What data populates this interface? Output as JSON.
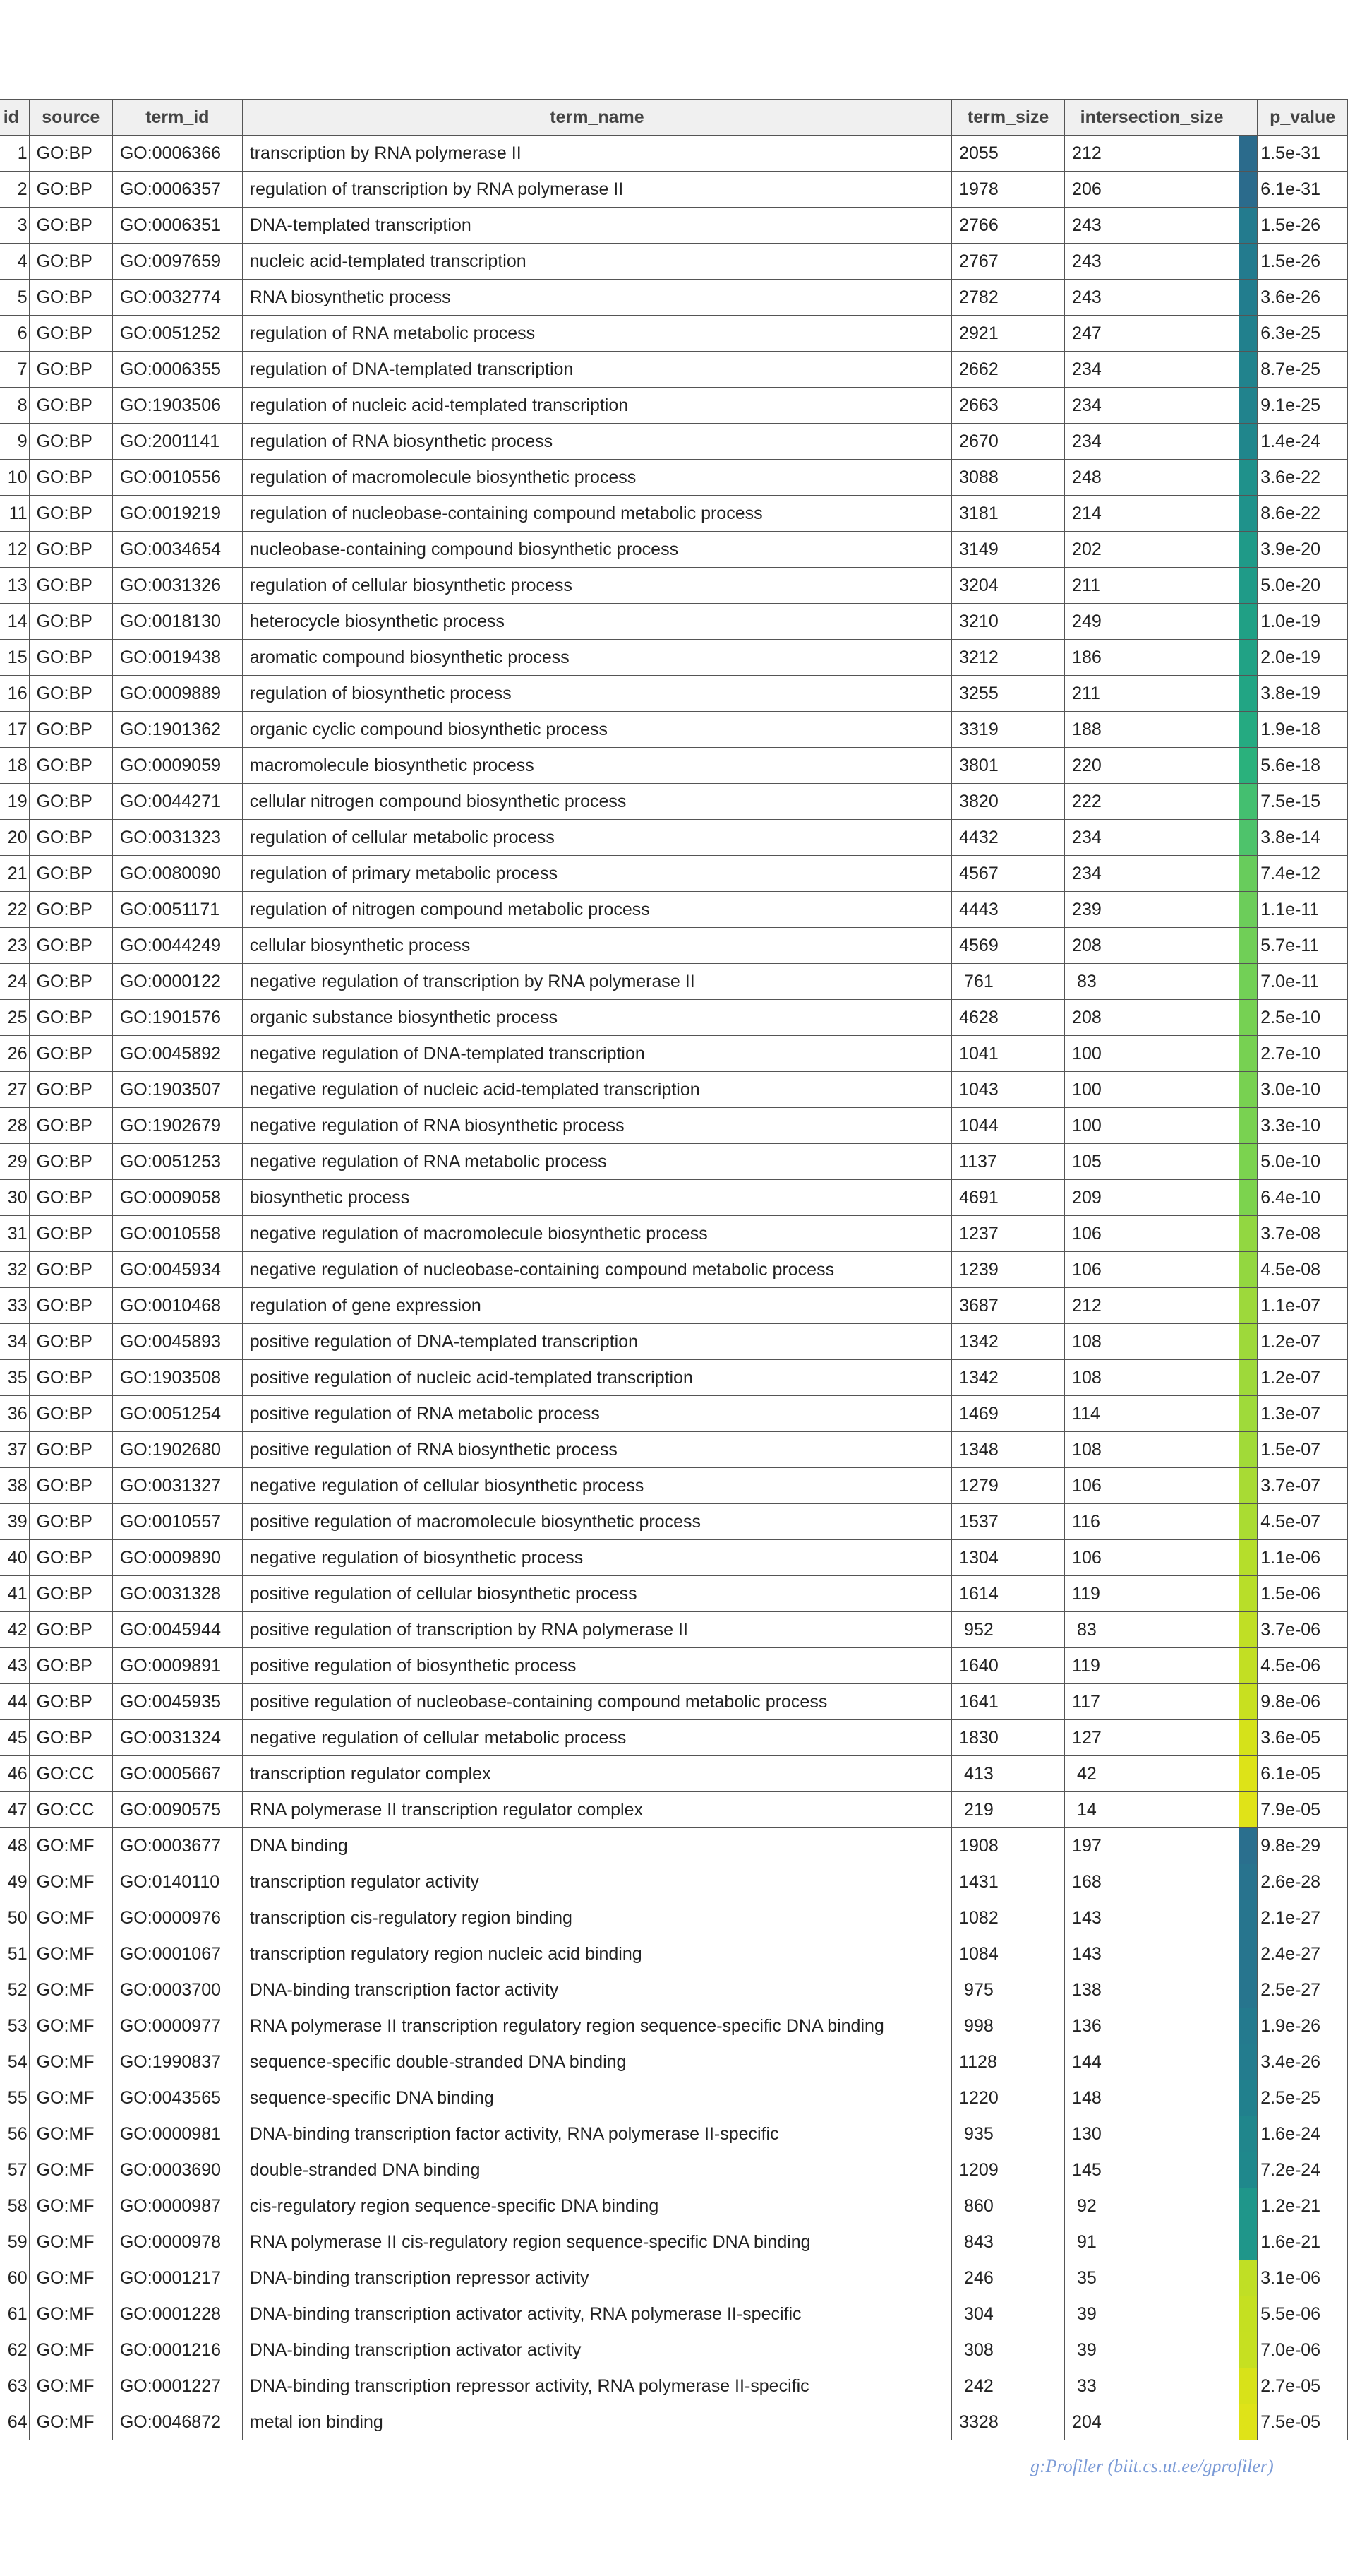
{
  "table": {
    "headers": {
      "id": "id",
      "source": "source",
      "term_id": "term_id",
      "term_name": "term_name",
      "term_size": "term_size",
      "intersection_size": "intersection_size",
      "color": "",
      "p_value": "p_value"
    },
    "rows": [
      {
        "id": "1",
        "source": "GO:BP",
        "term_id": "GO:0006366",
        "term_name": "transcription by RNA polymerase II",
        "term_size": "2055",
        "intersection_size": "212",
        "color": "#2b6b8c",
        "p_value": "1.5e-31"
      },
      {
        "id": "2",
        "source": "GO:BP",
        "term_id": "GO:0006357",
        "term_name": "regulation of transcription by RNA polymerase II",
        "term_size": "1978",
        "intersection_size": "206",
        "color": "#2b6b8c",
        "p_value": "6.1e-31"
      },
      {
        "id": "3",
        "source": "GO:BP",
        "term_id": "GO:0006351",
        "term_name": "DNA-templated transcription",
        "term_size": "2766",
        "intersection_size": "243",
        "color": "#237b8e",
        "p_value": "1.5e-26"
      },
      {
        "id": "4",
        "source": "GO:BP",
        "term_id": "GO:0097659",
        "term_name": "nucleic acid-templated transcription",
        "term_size": "2767",
        "intersection_size": "243",
        "color": "#237b8e",
        "p_value": "1.5e-26"
      },
      {
        "id": "5",
        "source": "GO:BP",
        "term_id": "GO:0032774",
        "term_name": "RNA biosynthetic process",
        "term_size": "2782",
        "intersection_size": "243",
        "color": "#227d8e",
        "p_value": "3.6e-26"
      },
      {
        "id": "6",
        "source": "GO:BP",
        "term_id": "GO:0051252",
        "term_name": "regulation of RNA metabolic process",
        "term_size": "2921",
        "intersection_size": "247",
        "color": "#21808d",
        "p_value": "6.3e-25"
      },
      {
        "id": "7",
        "source": "GO:BP",
        "term_id": "GO:0006355",
        "term_name": "regulation of DNA-templated transcription",
        "term_size": "2662",
        "intersection_size": "234",
        "color": "#21838d",
        "p_value": "8.7e-25"
      },
      {
        "id": "8",
        "source": "GO:BP",
        "term_id": "GO:1903506",
        "term_name": "regulation of nucleic acid-templated transcription",
        "term_size": "2663",
        "intersection_size": "234",
        "color": "#21838d",
        "p_value": "9.1e-25"
      },
      {
        "id": "9",
        "source": "GO:BP",
        "term_id": "GO:2001141",
        "term_name": "regulation of RNA biosynthetic process",
        "term_size": "2670",
        "intersection_size": "234",
        "color": "#20868c",
        "p_value": "1.4e-24"
      },
      {
        "id": "10",
        "source": "GO:BP",
        "term_id": "GO:0010556",
        "term_name": "regulation of macromolecule biosynthetic process",
        "term_size": "3088",
        "intersection_size": "248",
        "color": "#1f918b",
        "p_value": "3.6e-22"
      },
      {
        "id": "11",
        "source": "GO:BP",
        "term_id": "GO:0019219",
        "term_name": "regulation of nucleobase-containing compound metabolic process",
        "term_size": "3181",
        "intersection_size": "214",
        "color": "#1f928b",
        "p_value": "8.6e-22"
      },
      {
        "id": "12",
        "source": "GO:BP",
        "term_id": "GO:0034654",
        "term_name": "nucleobase-containing compound biosynthetic process",
        "term_size": "3149",
        "intersection_size": "202",
        "color": "#1f9a88",
        "p_value": "3.9e-20"
      },
      {
        "id": "13",
        "source": "GO:BP",
        "term_id": "GO:0031326",
        "term_name": "regulation of cellular biosynthetic process",
        "term_size": "3204",
        "intersection_size": "211",
        "color": "#1f9b88",
        "p_value": "5.0e-20"
      },
      {
        "id": "14",
        "source": "GO:BP",
        "term_id": "GO:0018130",
        "term_name": "heterocycle biosynthetic process",
        "term_size": "3210",
        "intersection_size": "249",
        "color": "#20a085",
        "p_value": "1.0e-19"
      },
      {
        "id": "15",
        "source": "GO:BP",
        "term_id": "GO:0019438",
        "term_name": "aromatic compound biosynthetic process",
        "term_size": "3212",
        "intersection_size": "186",
        "color": "#21a285",
        "p_value": "2.0e-19"
      },
      {
        "id": "16",
        "source": "GO:BP",
        "term_id": "GO:0009889",
        "term_name": "regulation of biosynthetic process",
        "term_size": "3255",
        "intersection_size": "211",
        "color": "#22a584",
        "p_value": "3.8e-19"
      },
      {
        "id": "17",
        "source": "GO:BP",
        "term_id": "GO:1901362",
        "term_name": "organic cyclic compound biosynthetic process",
        "term_size": "3319",
        "intersection_size": "188",
        "color": "#25aa81",
        "p_value": "1.9e-18"
      },
      {
        "id": "18",
        "source": "GO:BP",
        "term_id": "GO:0009059",
        "term_name": "macromolecule biosynthetic process",
        "term_size": "3801",
        "intersection_size": "220",
        "color": "#2ab17c",
        "p_value": "5.6e-18"
      },
      {
        "id": "19",
        "source": "GO:BP",
        "term_id": "GO:0044271",
        "term_name": "cellular nitrogen compound biosynthetic process",
        "term_size": "3820",
        "intersection_size": "222",
        "color": "#44bf70",
        "p_value": "7.5e-15"
      },
      {
        "id": "20",
        "source": "GO:BP",
        "term_id": "GO:0031323",
        "term_name": "regulation of cellular metabolic process",
        "term_size": "4432",
        "intersection_size": "234",
        "color": "#4ec36b",
        "p_value": "3.8e-14"
      },
      {
        "id": "21",
        "source": "GO:BP",
        "term_id": "GO:0080090",
        "term_name": "regulation of primary metabolic process",
        "term_size": "4567",
        "intersection_size": "234",
        "color": "#68cc5c",
        "p_value": "7.4e-12"
      },
      {
        "id": "22",
        "source": "GO:BP",
        "term_id": "GO:0051171",
        "term_name": "regulation of nitrogen compound metabolic process",
        "term_size": "4443",
        "intersection_size": "239",
        "color": "#6ccd5a",
        "p_value": "1.1e-11"
      },
      {
        "id": "23",
        "source": "GO:BP",
        "term_id": "GO:0044249",
        "term_name": "cellular biosynthetic process",
        "term_size": "4569",
        "intersection_size": "208",
        "color": "#70cf57",
        "p_value": "5.7e-11"
      },
      {
        "id": "24",
        "source": "GO:BP",
        "term_id": "GO:0000122",
        "term_name": "negative regulation of transcription by RNA polymerase II",
        "term_size": " 761",
        "intersection_size": " 83",
        "color": "#72d056",
        "p_value": "7.0e-11"
      },
      {
        "id": "25",
        "source": "GO:BP",
        "term_id": "GO:1901576",
        "term_name": "organic substance biosynthetic process",
        "term_size": "4628",
        "intersection_size": "208",
        "color": "#76d153",
        "p_value": "2.5e-10"
      },
      {
        "id": "26",
        "source": "GO:BP",
        "term_id": "GO:0045892",
        "term_name": "negative regulation of DNA-templated transcription",
        "term_size": "1041",
        "intersection_size": "100",
        "color": "#77d152",
        "p_value": "2.7e-10"
      },
      {
        "id": "27",
        "source": "GO:BP",
        "term_id": "GO:1903507",
        "term_name": "negative regulation of nucleic acid-templated transcription",
        "term_size": "1043",
        "intersection_size": "100",
        "color": "#78d151",
        "p_value": "3.0e-10"
      },
      {
        "id": "28",
        "source": "GO:BP",
        "term_id": "GO:1902679",
        "term_name": "negative regulation of RNA biosynthetic process",
        "term_size": "1044",
        "intersection_size": "100",
        "color": "#79d251",
        "p_value": "3.3e-10"
      },
      {
        "id": "29",
        "source": "GO:BP",
        "term_id": "GO:0051253",
        "term_name": "negative regulation of RNA metabolic process",
        "term_size": "1137",
        "intersection_size": "105",
        "color": "#7bd34f",
        "p_value": "5.0e-10"
      },
      {
        "id": "30",
        "source": "GO:BP",
        "term_id": "GO:0009058",
        "term_name": "biosynthetic process",
        "term_size": "4691",
        "intersection_size": "209",
        "color": "#7cd34e",
        "p_value": "6.4e-10"
      },
      {
        "id": "31",
        "source": "GO:BP",
        "term_id": "GO:0010558",
        "term_name": "negative regulation of macromolecule biosynthetic process",
        "term_size": "1237",
        "intersection_size": "106",
        "color": "#92d741",
        "p_value": "3.7e-08"
      },
      {
        "id": "32",
        "source": "GO:BP",
        "term_id": "GO:0045934",
        "term_name": "negative regulation of nucleobase-containing compound metabolic process",
        "term_size": "1239",
        "intersection_size": "106",
        "color": "#93d740",
        "p_value": "4.5e-08"
      },
      {
        "id": "33",
        "source": "GO:BP",
        "term_id": "GO:0010468",
        "term_name": "regulation of gene expression",
        "term_size": "3687",
        "intersection_size": "212",
        "color": "#9dd93b",
        "p_value": "1.1e-07"
      },
      {
        "id": "34",
        "source": "GO:BP",
        "term_id": "GO:0045893",
        "term_name": "positive regulation of DNA-templated transcription",
        "term_size": "1342",
        "intersection_size": "108",
        "color": "#9ed93a",
        "p_value": "1.2e-07"
      },
      {
        "id": "35",
        "source": "GO:BP",
        "term_id": "GO:1903508",
        "term_name": "positive regulation of nucleic acid-templated transcription",
        "term_size": "1342",
        "intersection_size": "108",
        "color": "#9ed93a",
        "p_value": "1.2e-07"
      },
      {
        "id": "36",
        "source": "GO:BP",
        "term_id": "GO:0051254",
        "term_name": "positive regulation of RNA metabolic process",
        "term_size": "1469",
        "intersection_size": "114",
        "color": "#9fda3a",
        "p_value": "1.3e-07"
      },
      {
        "id": "37",
        "source": "GO:BP",
        "term_id": "GO:1902680",
        "term_name": "positive regulation of RNA biosynthetic process",
        "term_size": "1348",
        "intersection_size": "108",
        "color": "#a1da38",
        "p_value": "1.5e-07"
      },
      {
        "id": "38",
        "source": "GO:BP",
        "term_id": "GO:0031327",
        "term_name": "negative regulation of cellular biosynthetic process",
        "term_size": "1279",
        "intersection_size": "106",
        "color": "#a8db34",
        "p_value": "3.7e-07"
      },
      {
        "id": "39",
        "source": "GO:BP",
        "term_id": "GO:0010557",
        "term_name": "positive regulation of macromolecule biosynthetic process",
        "term_size": "1537",
        "intersection_size": "116",
        "color": "#aadc32",
        "p_value": "4.5e-07"
      },
      {
        "id": "40",
        "source": "GO:BP",
        "term_id": "GO:0009890",
        "term_name": "negative regulation of biosynthetic process",
        "term_size": "1304",
        "intersection_size": "106",
        "color": "#b5de2b",
        "p_value": "1.1e-06"
      },
      {
        "id": "41",
        "source": "GO:BP",
        "term_id": "GO:0031328",
        "term_name": "positive regulation of cellular biosynthetic process",
        "term_size": "1614",
        "intersection_size": "119",
        "color": "#b8de29",
        "p_value": "1.5e-06"
      },
      {
        "id": "42",
        "source": "GO:BP",
        "term_id": "GO:0045944",
        "term_name": "positive regulation of transcription by RNA polymerase II",
        "term_size": " 952",
        "intersection_size": " 83",
        "color": "#c0df25",
        "p_value": "3.7e-06"
      },
      {
        "id": "43",
        "source": "GO:BP",
        "term_id": "GO:0009891",
        "term_name": "positive regulation of biosynthetic process",
        "term_size": "1640",
        "intersection_size": "119",
        "color": "#c2df23",
        "p_value": "4.5e-06"
      },
      {
        "id": "44",
        "source": "GO:BP",
        "term_id": "GO:0045935",
        "term_name": "positive regulation of nucleobase-containing compound metabolic process",
        "term_size": "1641",
        "intersection_size": "117",
        "color": "#c8e020",
        "p_value": "9.8e-06"
      },
      {
        "id": "45",
        "source": "GO:BP",
        "term_id": "GO:0031324",
        "term_name": "negative regulation of cellular metabolic process",
        "term_size": "1830",
        "intersection_size": "127",
        "color": "#d5e21a",
        "p_value": "3.6e-05"
      },
      {
        "id": "46",
        "source": "GO:CC",
        "term_id": "GO:0005667",
        "term_name": "transcription regulator complex",
        "term_size": " 413",
        "intersection_size": " 42",
        "color": "#dde318",
        "p_value": "6.1e-05"
      },
      {
        "id": "47",
        "source": "GO:CC",
        "term_id": "GO:0090575",
        "term_name": "RNA polymerase II transcription regulator complex",
        "term_size": " 219",
        "intersection_size": " 14",
        "color": "#e0e318",
        "p_value": "7.9e-05"
      },
      {
        "id": "48",
        "source": "GO:MF",
        "term_id": "GO:0003677",
        "term_name": "DNA binding",
        "term_size": "1908",
        "intersection_size": "197",
        "color": "#2a6f8e",
        "p_value": "9.8e-29"
      },
      {
        "id": "49",
        "source": "GO:MF",
        "term_id": "GO:0140110",
        "term_name": "transcription regulator activity",
        "term_size": "1431",
        "intersection_size": "168",
        "color": "#28738e",
        "p_value": "2.6e-28"
      },
      {
        "id": "50",
        "source": "GO:MF",
        "term_id": "GO:0000976",
        "term_name": "transcription cis-regulatory region binding",
        "term_size": "1082",
        "intersection_size": "143",
        "color": "#27758e",
        "p_value": "2.1e-27"
      },
      {
        "id": "51",
        "source": "GO:MF",
        "term_id": "GO:0001067",
        "term_name": "transcription regulatory region nucleic acid binding",
        "term_size": "1084",
        "intersection_size": "143",
        "color": "#27758e",
        "p_value": "2.4e-27"
      },
      {
        "id": "52",
        "source": "GO:MF",
        "term_id": "GO:0003700",
        "term_name": "DNA-binding transcription factor activity",
        "term_size": " 975",
        "intersection_size": "138",
        "color": "#27758e",
        "p_value": "2.5e-27"
      },
      {
        "id": "53",
        "source": "GO:MF",
        "term_id": "GO:0000977",
        "term_name": "RNA polymerase II transcription regulatory region sequence-specific DNA binding",
        "term_size": " 998",
        "intersection_size": "136",
        "color": "#247a8e",
        "p_value": "1.9e-26"
      },
      {
        "id": "54",
        "source": "GO:MF",
        "term_id": "GO:1990837",
        "term_name": "sequence-specific double-stranded DNA binding",
        "term_size": "1128",
        "intersection_size": "144",
        "color": "#237c8e",
        "p_value": "3.4e-26"
      },
      {
        "id": "55",
        "source": "GO:MF",
        "term_id": "GO:0043565",
        "term_name": "sequence-specific DNA binding",
        "term_size": "1220",
        "intersection_size": "148",
        "color": "#21808d",
        "p_value": "2.5e-25"
      },
      {
        "id": "56",
        "source": "GO:MF",
        "term_id": "GO:0000981",
        "term_name": "DNA-binding transcription factor activity, RNA polymerase II-specific",
        "term_size": " 935",
        "intersection_size": "130",
        "color": "#20868c",
        "p_value": "1.6e-24"
      },
      {
        "id": "57",
        "source": "GO:MF",
        "term_id": "GO:0003690",
        "term_name": "double-stranded DNA binding",
        "term_size": "1209",
        "intersection_size": "145",
        "color": "#1f888c",
        "p_value": "7.2e-24"
      },
      {
        "id": "58",
        "source": "GO:MF",
        "term_id": "GO:0000987",
        "term_name": "cis-regulatory region sequence-specific DNA binding",
        "term_size": " 860",
        "intersection_size": " 92",
        "color": "#1f968a",
        "p_value": "1.2e-21"
      },
      {
        "id": "59",
        "source": "GO:MF",
        "term_id": "GO:0000978",
        "term_name": "RNA polymerase II cis-regulatory region sequence-specific DNA binding",
        "term_size": " 843",
        "intersection_size": " 91",
        "color": "#1f968a",
        "p_value": "1.6e-21"
      },
      {
        "id": "60",
        "source": "GO:MF",
        "term_id": "GO:0001217",
        "term_name": "DNA-binding transcription repressor activity",
        "term_size": " 246",
        "intersection_size": " 35",
        "color": "#c0df25",
        "p_value": "3.1e-06"
      },
      {
        "id": "61",
        "source": "GO:MF",
        "term_id": "GO:0001228",
        "term_name": "DNA-binding transcription activator activity, RNA polymerase II-specific",
        "term_size": " 304",
        "intersection_size": " 39",
        "color": "#c5e021",
        "p_value": "5.5e-06"
      },
      {
        "id": "62",
        "source": "GO:MF",
        "term_id": "GO:0001216",
        "term_name": "DNA-binding transcription activator activity",
        "term_size": " 308",
        "intersection_size": " 39",
        "color": "#c6e021",
        "p_value": "7.0e-06"
      },
      {
        "id": "63",
        "source": "GO:MF",
        "term_id": "GO:0001227",
        "term_name": "DNA-binding transcription repressor activity, RNA polymerase II-specific",
        "term_size": " 242",
        "intersection_size": " 33",
        "color": "#d8e219",
        "p_value": "2.7e-05"
      },
      {
        "id": "64",
        "source": "GO:MF",
        "term_id": "GO:0046872",
        "term_name": "metal ion binding",
        "term_size": "3328",
        "intersection_size": "204",
        "color": "#dfe318",
        "p_value": "7.5e-05"
      }
    ]
  },
  "footer": {
    "credit": "g:Profiler (biit.cs.ut.ee/gprofiler)"
  }
}
